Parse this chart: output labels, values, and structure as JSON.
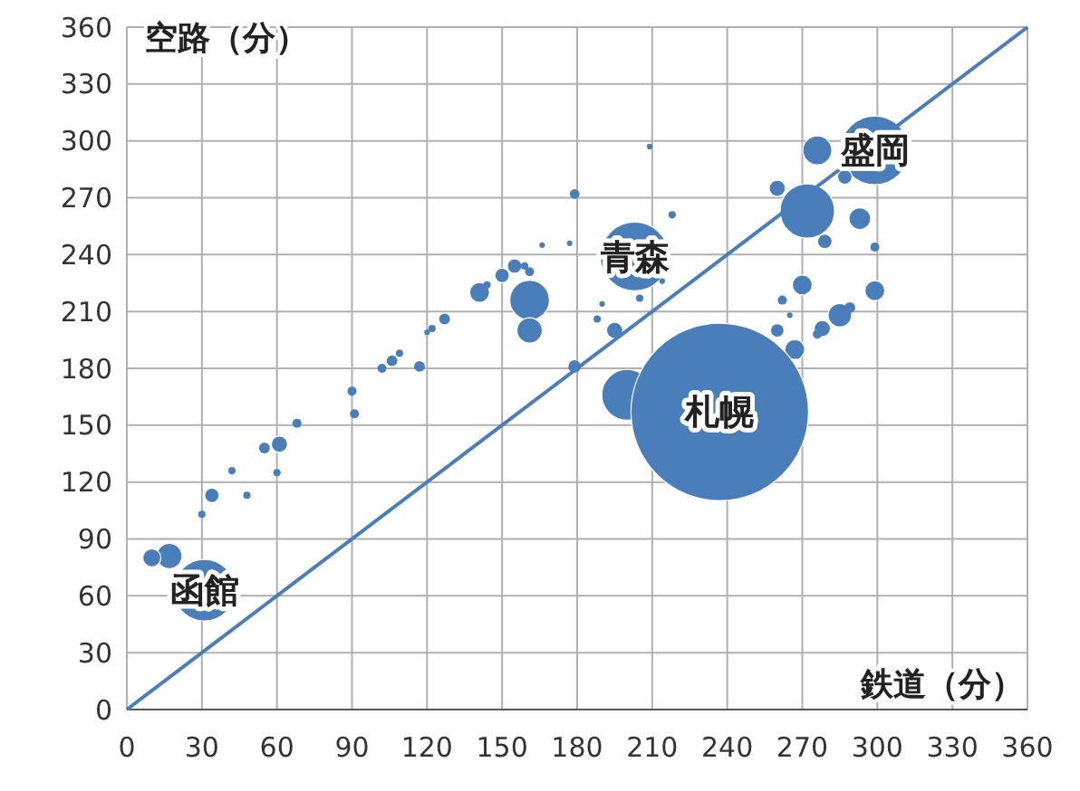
{
  "chart_data": {
    "type": "bubble",
    "xlabel": "鉄道（分）",
    "ylabel": "空路（分）",
    "xlim": [
      0,
      360
    ],
    "ylim": [
      0,
      360
    ],
    "xticks": [
      0,
      30,
      60,
      90,
      120,
      150,
      180,
      210,
      240,
      270,
      300,
      330,
      360
    ],
    "yticks": [
      0,
      30,
      60,
      90,
      120,
      150,
      180,
      210,
      240,
      270,
      300,
      330,
      360
    ],
    "grid": true,
    "series": [
      {
        "color": "#4a7ebb",
        "x": [
          179,
          166,
          177,
          155,
          150,
          161,
          159,
          141,
          144,
          161,
          161,
          127,
          122,
          120,
          117,
          106,
          109,
          102,
          90,
          91,
          68,
          61,
          55,
          60,
          42,
          48,
          34,
          30,
          17,
          10,
          31,
          179,
          209,
          299,
          276,
          287,
          260,
          272,
          293,
          279,
          299,
          218,
          203,
          214,
          205,
          190,
          188,
          195,
          270,
          299,
          262,
          265,
          285,
          289,
          260,
          278,
          276,
          267,
          268,
          200,
          237
        ],
        "values": [
          272,
          245,
          246,
          234,
          229,
          231,
          234,
          220,
          224,
          216,
          200,
          206,
          201,
          199,
          181,
          184,
          188,
          180,
          168,
          156,
          151,
          140,
          138,
          125,
          126,
          113,
          113,
          103,
          81,
          80,
          63,
          181,
          297,
          295,
          295,
          281,
          275,
          263,
          259,
          247,
          244,
          261,
          239,
          226,
          217,
          214,
          206,
          200,
          224,
          221,
          216,
          208,
          208,
          212,
          200,
          201,
          198,
          190,
          187,
          166,
          157
        ],
        "sizes": [
          0.003,
          0.001,
          0.001,
          0.0067,
          0.0067,
          0.0026,
          0.0017,
          0.0126,
          0.0017,
          0.05,
          0.0204,
          0.0037,
          0.0017,
          0.001,
          0.0037,
          0.0037,
          0.0017,
          0.0026,
          0.0026,
          0.0026,
          0.0026,
          0.0084,
          0.0037,
          0.0017,
          0.0017,
          0.0017,
          0.0067,
          0.0017,
          0.0204,
          0.0104,
          0.12,
          0.005,
          0.001,
          0.15,
          0.0267,
          0.0067,
          0.0084,
          0.094,
          0.015,
          0.0067,
          0.0026,
          0.0017,
          0.15,
          0.001,
          0.0017,
          0.001,
          0.0017,
          0.0084,
          0.0126,
          0.0126,
          0.0026,
          0.001,
          0.0176,
          0.0037,
          0.005,
          0.0084,
          0.0026,
          0.0126,
          0.0017,
          0.082,
          1
        ]
      },
      {
        "type": "line",
        "color": "#4a7ebb",
        "x": [
          0,
          360
        ],
        "values": [
          0,
          360
        ]
      }
    ],
    "annotations": [
      {
        "text": "函館",
        "x": 31,
        "y": 63
      },
      {
        "text": "青森",
        "x": 203,
        "y": 239
      },
      {
        "text": "札幌",
        "x": 237,
        "y": 157
      },
      {
        "text": "盛岡",
        "x": 299,
        "y": 295
      }
    ]
  }
}
